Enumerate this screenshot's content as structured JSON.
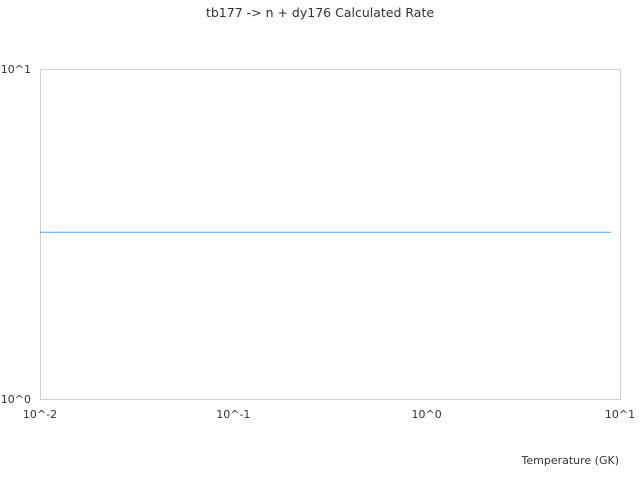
{
  "chart_data": {
    "type": "line",
    "title": "tb177 -> n + dy176 Calculated Rate",
    "xlabel": "Temperature (GK)",
    "ylabel": "",
    "xscale": "log",
    "yscale": "log",
    "xlim": [
      0.01,
      10
    ],
    "ylim": [
      1,
      10
    ],
    "xticks": [
      {
        "value": 0.01,
        "label": "10^-2"
      },
      {
        "value": 0.1,
        "label": "10^-1"
      },
      {
        "value": 1,
        "label": "10^0"
      },
      {
        "value": 10,
        "label": "10^1"
      }
    ],
    "yticks": [
      {
        "value": 1,
        "label": "10^0"
      },
      {
        "value": 10,
        "label": "10^1"
      }
    ],
    "grid": false,
    "series": [
      {
        "color": "#5aa5f0",
        "x": [
          0.01,
          9
        ],
        "y": [
          3.2,
          3.2
        ]
      }
    ]
  }
}
